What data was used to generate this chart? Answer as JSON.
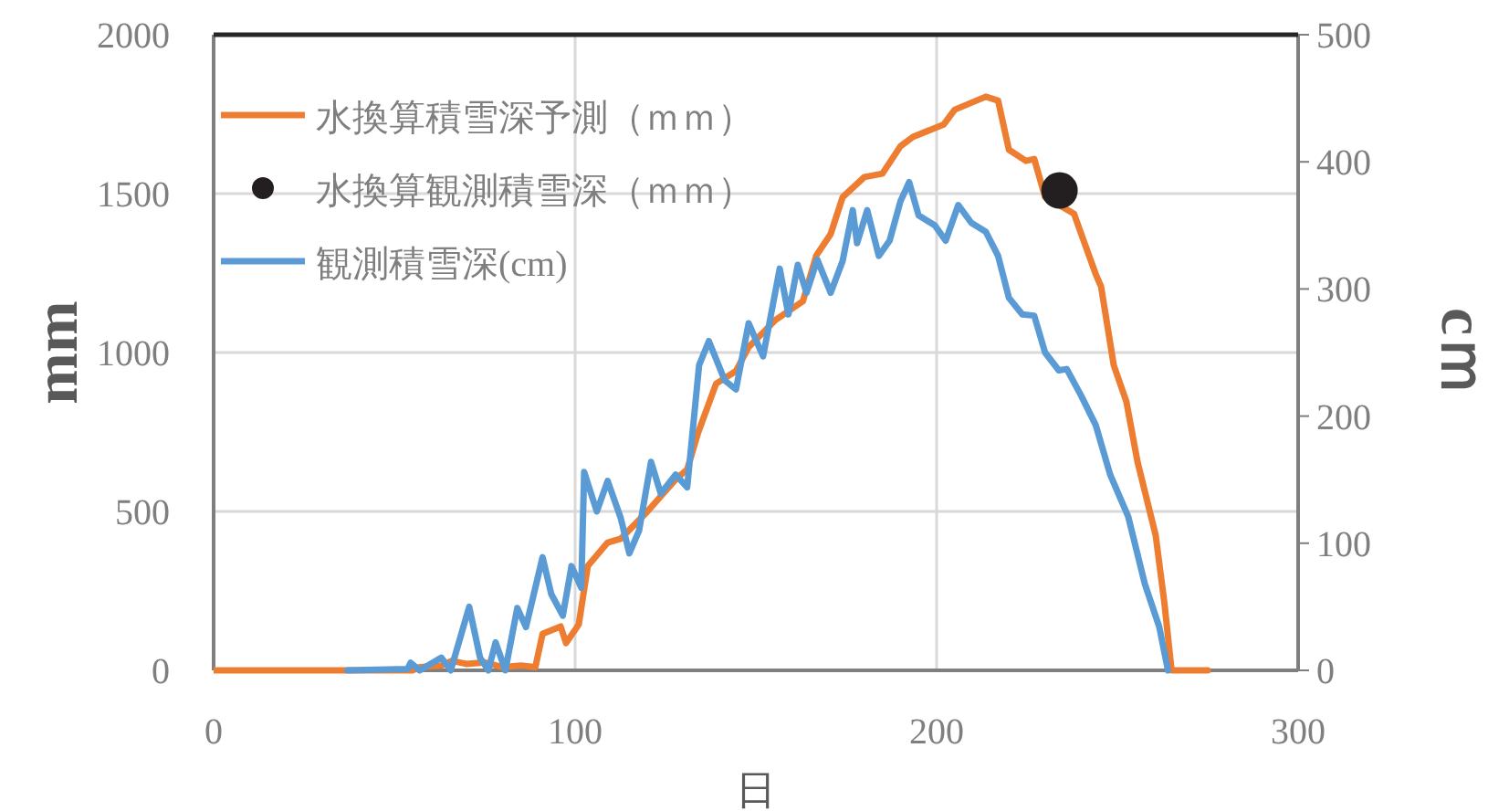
{
  "chart_data": {
    "type": "line",
    "xlabel": "日",
    "ylabel": "mm",
    "y2label": "cｍ",
    "xlim": [
      0,
      300
    ],
    "xticks": [
      0,
      100,
      200,
      300
    ],
    "ylim": [
      0,
      2000
    ],
    "yticks": [
      0,
      500,
      1000,
      1500,
      2000
    ],
    "y2lim": [
      0,
      500
    ],
    "y2ticks": [
      0,
      100,
      200,
      300,
      400,
      500
    ],
    "grid": true,
    "legend": "top left",
    "line_style": "solid",
    "series": [
      {
        "name": "水換算積雪深予測（ｍｍ）",
        "color": "#ed7d31",
        "marker": "none",
        "x": [
          0,
          55,
          57,
          63,
          66,
          70,
          75,
          80,
          85,
          89,
          91,
          96,
          97.5,
          101,
          103.5,
          109,
          112.6,
          120,
          128,
          131,
          134,
          139,
          144.5,
          148,
          155.5,
          163,
          166.7,
          170.7,
          174,
          180,
          185,
          190,
          193.4,
          202,
          205,
          213.6,
          217,
          220,
          224.7,
          227,
          230,
          238,
          240,
          244,
          245.5,
          249,
          252.5,
          255.6,
          260.6,
          263,
          265,
          275
        ],
        "values": [
          0,
          0,
          10,
          15,
          30,
          20,
          25,
          10,
          15,
          10,
          115,
          138,
          86,
          144,
          328,
          402,
          414,
          500,
          603,
          632,
          747,
          902,
          942,
          1017,
          1103,
          1161,
          1305,
          1373,
          1489,
          1552,
          1563,
          1649,
          1678,
          1718,
          1764,
          1805,
          1793,
          1638,
          1603,
          1609,
          1489,
          1437,
          1373,
          1247,
          1207,
          960,
          845,
          655,
          425,
          213,
          0,
          0
        ]
      },
      {
        "name": "水換算観測積雪深（ｍｍ）",
        "type": "scatter",
        "color": "#231f20",
        "marker": "circle",
        "x": [
          234
        ],
        "values": [
          1510
        ]
      },
      {
        "name": "観測積雪深(cm)",
        "color": "#5b9bd5",
        "marker": "none",
        "axis": "y2",
        "x": [
          37,
          53.6,
          54.5,
          57,
          63,
          65.6,
          70.7,
          73.7,
          76,
          78,
          80.7,
          84,
          86.4,
          91,
          93.4,
          96.6,
          99,
          101.7,
          102.5,
          106,
          109,
          112.6,
          115,
          117.7,
          121,
          123.7,
          127.8,
          131,
          134.3,
          137,
          141.4,
          144.5,
          148,
          152,
          156.6,
          159,
          161.6,
          164,
          167,
          170.7,
          174,
          176.8,
          178,
          180.8,
          184,
          187,
          190,
          192.4,
          195,
          199.5,
          202.5,
          206,
          209.6,
          213.6,
          217,
          220,
          223.7,
          227,
          230,
          233.8,
          236,
          240,
          244,
          248,
          253,
          257.6,
          261.6,
          264
        ],
        "values": [
          0,
          1,
          6,
          0,
          10,
          0,
          50,
          10,
          0,
          22,
          0,
          49,
          34,
          89,
          60,
          43,
          82,
          65,
          156,
          125,
          149,
          120,
          92,
          110,
          164,
          139,
          154,
          144,
          240,
          259,
          228,
          221,
          273,
          247,
          316,
          280,
          319,
          297,
          323,
          297,
          322,
          362,
          336,
          362,
          326,
          338,
          369,
          384,
          358,
          350,
          338,
          366,
          352,
          345,
          326,
          293,
          280,
          279,
          250,
          236,
          237,
          216,
          193,
          154,
          121,
          68,
          34,
          0
        ]
      }
    ]
  }
}
